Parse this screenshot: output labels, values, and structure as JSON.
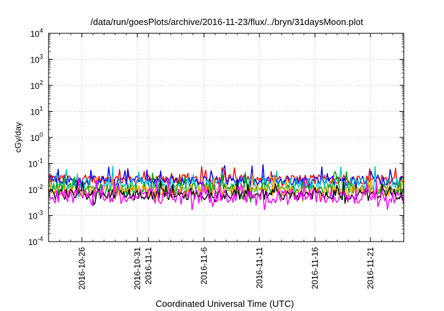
{
  "chart_data": {
    "type": "line",
    "title": "/data/run/goesPlots/archive/2016-11-23/flux/../bryn/31daysMoon.plot",
    "xlabel": "Coordinated Universal Time (UTC)",
    "ylabel": "cGy/day",
    "yscale": "log",
    "ylim": [
      0.0001,
      10000
    ],
    "xlim": [
      "2016-10-23",
      "2016-11-24"
    ],
    "grid": true,
    "legend": "none",
    "y_ticks": [
      {
        "base": "10",
        "exp": "-4"
      },
      {
        "base": "10",
        "exp": "-3"
      },
      {
        "base": "10",
        "exp": "-2"
      },
      {
        "base": "10",
        "exp": "-1"
      },
      {
        "base": "10",
        "exp": "0"
      },
      {
        "base": "10",
        "exp": "1"
      },
      {
        "base": "10",
        "exp": "2"
      },
      {
        "base": "10",
        "exp": "3"
      },
      {
        "base": "10",
        "exp": "4"
      }
    ],
    "x_ticks": [
      {
        "date": "2016-10-26",
        "label": "2016-10-26"
      },
      {
        "date": "2016-10-31",
        "label": "2016-10-31"
      },
      {
        "date": "2016-11-01",
        "label": "2016-11-1"
      },
      {
        "date": "2016-11-06",
        "label": "2016-11-6"
      },
      {
        "date": "2016-11-11",
        "label": "2016-11-11"
      },
      {
        "date": "2016-11-16",
        "label": "2016-11-16"
      },
      {
        "date": "2016-11-21",
        "label": "2016-11-21"
      }
    ],
    "series": [
      {
        "color": "#ff0000",
        "base": 0.025,
        "spread": 0.18
      },
      {
        "color": "#0000ff",
        "base": 0.022,
        "spread": 0.18
      },
      {
        "color": "#00c8c8",
        "base": 0.016,
        "spread": 0.25
      },
      {
        "color": "#00a000",
        "base": 0.01,
        "spread": 0.25
      },
      {
        "color": "#ffa000",
        "base": 0.009,
        "spread": 0.22
      },
      {
        "color": "#000000",
        "base": 0.0065,
        "spread": 0.2
      },
      {
        "color": "#ff00ff",
        "base": 0.0055,
        "spread": 0.28
      }
    ]
  }
}
